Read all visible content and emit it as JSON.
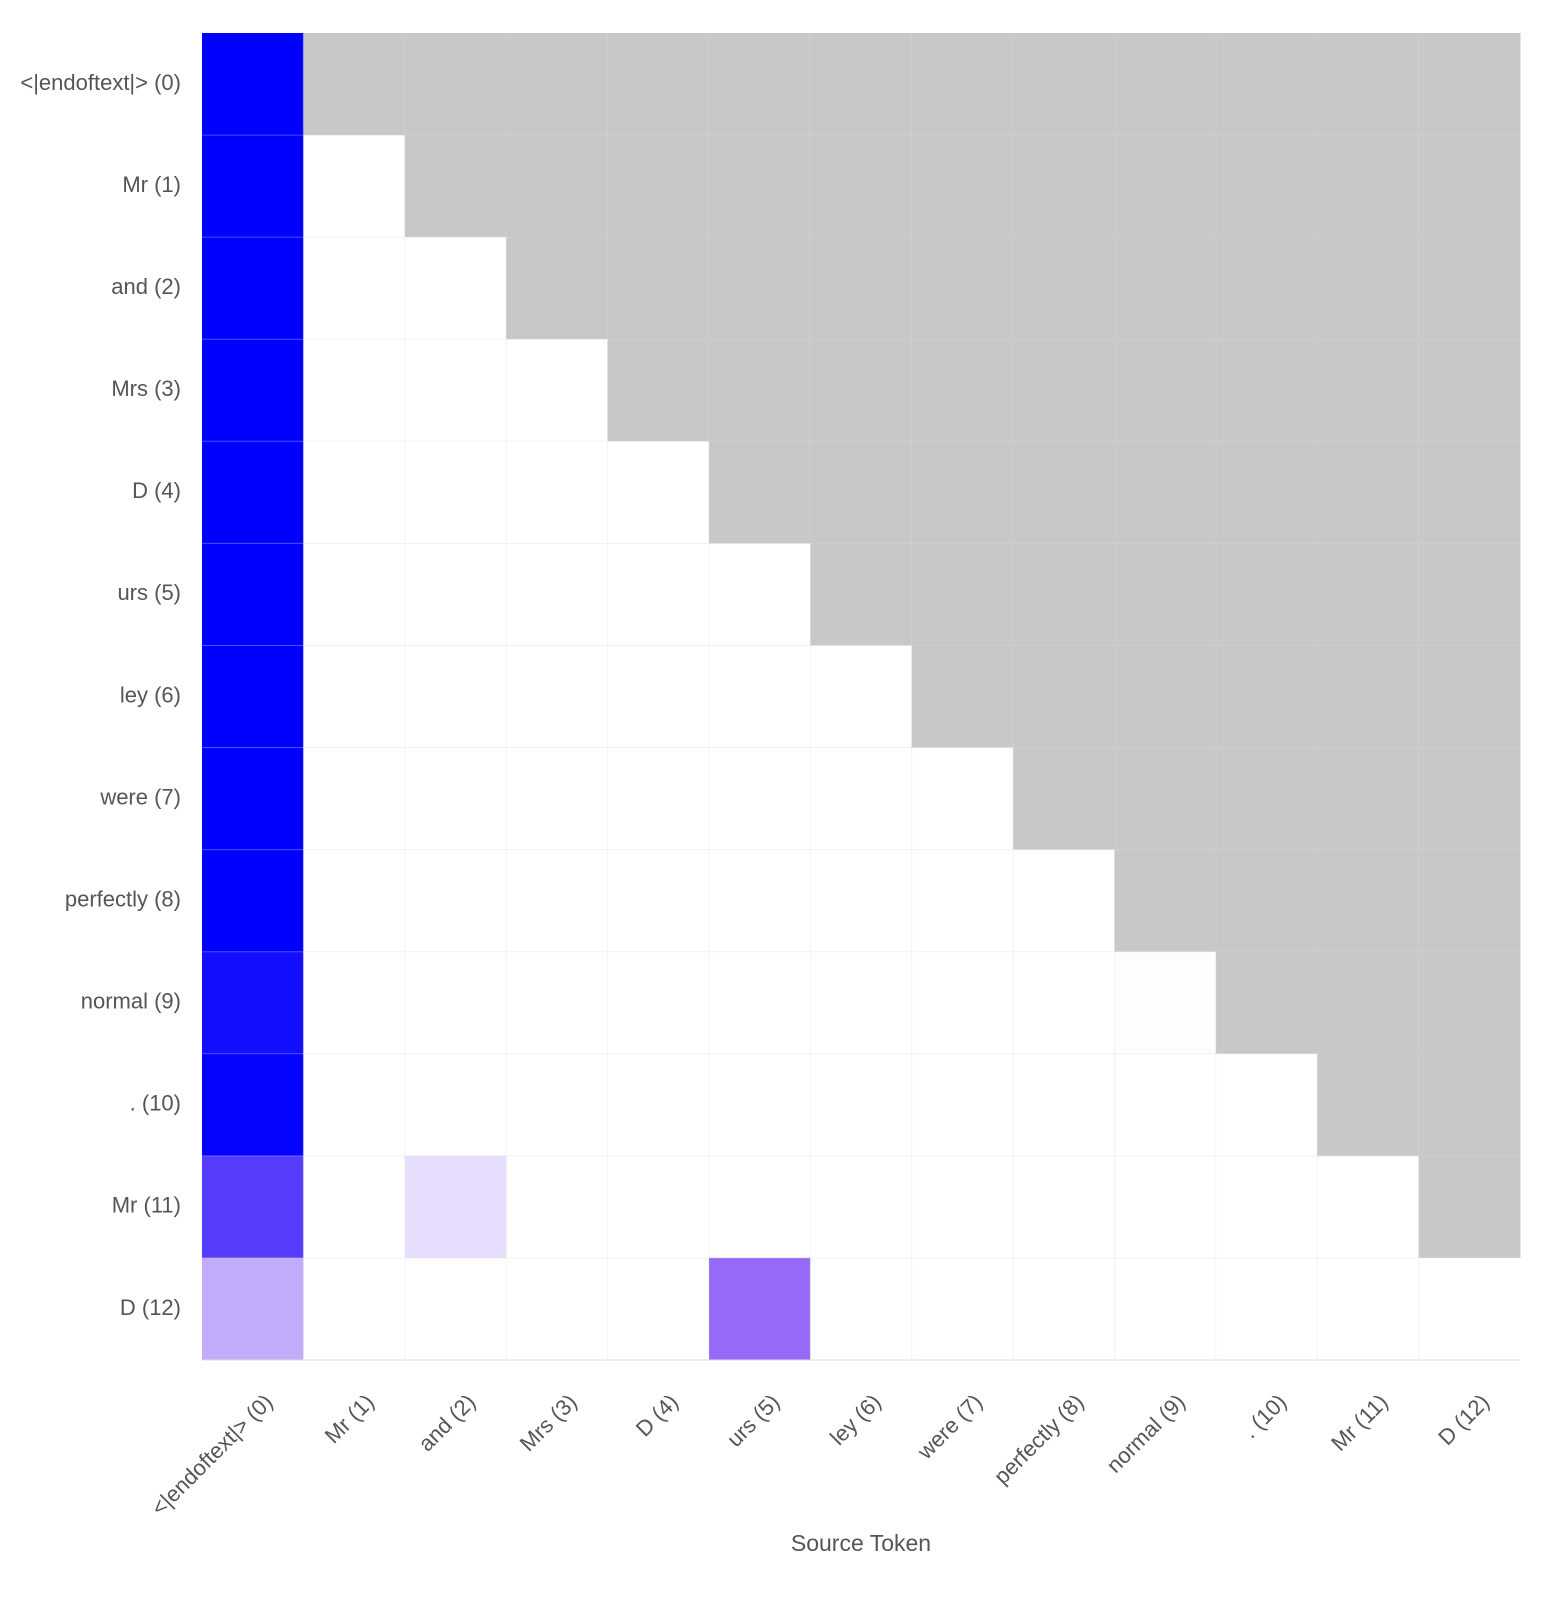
{
  "chart_data": {
    "type": "heatmap",
    "title": "",
    "xlabel": "Source Token",
    "ylabel": "",
    "x_tokens": [
      "<|endoftext|> (0)",
      "Mr (1)",
      "and (2)",
      "Mrs (3)",
      "D (4)",
      "urs (5)",
      "ley (6)",
      "were (7)",
      "perfectly (8)",
      "normal (9)",
      ". (10)",
      "Mr (11)",
      "D (12)"
    ],
    "y_tokens": [
      "<|endoftext|> (0)",
      "Mr (1)",
      "and (2)",
      "Mrs (3)",
      "D (4)",
      "urs (5)",
      "ley (6)",
      "were (7)",
      "perfectly (8)",
      "normal (9)",
      ". (10)",
      "Mr (11)",
      "D (12)"
    ],
    "mask": "causal-upper-triangle",
    "value_range": [
      0,
      1
    ],
    "colors": {
      "high": "#0000ff",
      "low": "#ffffff",
      "masked": "#c8c8c8",
      "grid": "#dddddd"
    },
    "values": [
      [
        1.0
      ],
      [
        1.0,
        0.0
      ],
      [
        1.0,
        0.0,
        0.0
      ],
      [
        1.0,
        0.0,
        0.0,
        0.0
      ],
      [
        1.0,
        0.0,
        0.0,
        0.0,
        0.0
      ],
      [
        1.0,
        0.0,
        0.0,
        0.0,
        0.0,
        0.0
      ],
      [
        1.0,
        0.0,
        0.0,
        0.0,
        0.0,
        0.0,
        0.0
      ],
      [
        1.0,
        0.0,
        0.0,
        0.0,
        0.0,
        0.0,
        0.0,
        0.0
      ],
      [
        1.0,
        0.0,
        0.0,
        0.0,
        0.0,
        0.0,
        0.0,
        0.0,
        0.0
      ],
      [
        0.95,
        0.0,
        0.0,
        0.0,
        0.0,
        0.0,
        0.0,
        0.0,
        0.0,
        0.01
      ],
      [
        0.99,
        0.0,
        0.0,
        0.0,
        0.0,
        0.0,
        0.0,
        0.0,
        0.0,
        0.0,
        0.0
      ],
      [
        0.78,
        0.0,
        0.14,
        0.0,
        0.0,
        0.0,
        0.0,
        0.0,
        0.0,
        0.0,
        0.0,
        0.0
      ],
      [
        0.35,
        0.0,
        0.0,
        0.0,
        0.0,
        0.62,
        0.0,
        0.0,
        0.0,
        0.0,
        0.0,
        0.0,
        0.0
      ]
    ]
  }
}
